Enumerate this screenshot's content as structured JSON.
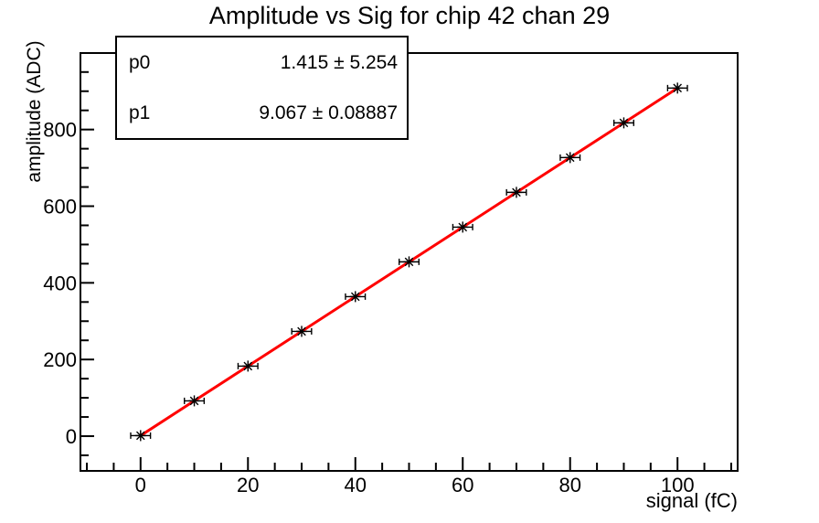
{
  "title": "Amplitude vs Sig for chip 42 chan 29",
  "stats_box": {
    "rows": [
      {
        "param": "p0",
        "value": "1.415 ± 5.254"
      },
      {
        "param": "p1",
        "value": "9.067 ± 0.08887"
      }
    ]
  },
  "chart_data": {
    "type": "scatter",
    "title": "Amplitude vs Sig for chip 42 chan 29",
    "xlabel": "signal (fC)",
    "ylabel": "amplitude (ADC)",
    "x": [
      0,
      10,
      20,
      30,
      40,
      50,
      60,
      70,
      80,
      90,
      100
    ],
    "y": [
      1.4,
      92.1,
      182.8,
      273.4,
      364.1,
      454.8,
      545.4,
      636.1,
      726.8,
      817.4,
      908.1
    ],
    "x_error": 1.5,
    "fit": {
      "p0": 1.415,
      "p0_err": 5.254,
      "p1": 9.067,
      "p1_err": 0.08887
    },
    "xlim": [
      -11.2,
      111.2
    ],
    "ylim": [
      -90.6,
      999.6
    ],
    "x_major_ticks": [
      0,
      20,
      40,
      60,
      80,
      100
    ],
    "x_minor_step": 5,
    "y_major_ticks": [
      0,
      200,
      400,
      600,
      800
    ],
    "y_minor_step": 50,
    "grid": false,
    "legend_position": "none",
    "marker": "asterisk",
    "colors": {
      "fit_line": "#ff0000",
      "marker": "#000000",
      "frame": "#000000",
      "background": "#ffffff"
    }
  }
}
